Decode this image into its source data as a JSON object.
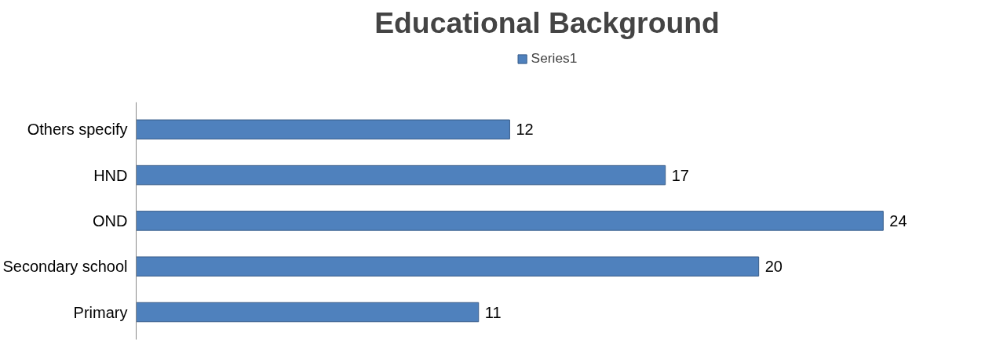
{
  "chart_data": {
    "type": "bar",
    "orientation": "horizontal",
    "title": "Educational Background",
    "categories": [
      "Others specify",
      "HND",
      "OND",
      "Secondary school",
      "Primary"
    ],
    "series": [
      {
        "name": "Series1",
        "color": "#4f81bd",
        "values": [
          12,
          17,
          24,
          20,
          11
        ]
      }
    ],
    "data_labels": true,
    "legend": "top",
    "grid": false,
    "tick_labels": "y"
  }
}
